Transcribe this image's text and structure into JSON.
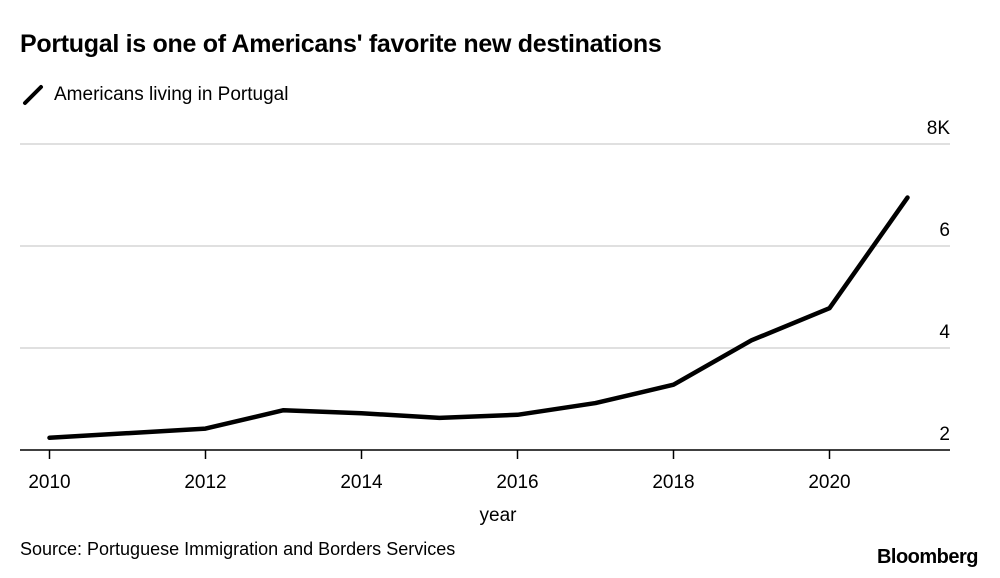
{
  "chart_data": {
    "type": "line",
    "title": "Portugal is one of Americans' favorite new destinations",
    "xlabel": "year",
    "ylabel": "",
    "x": [
      2010,
      2012,
      2013,
      2014,
      2015,
      2016,
      2017,
      2018,
      2019,
      2020,
      2021
    ],
    "series": [
      {
        "name": "Americans living in Portugal",
        "color": "#000000",
        "values": [
          2.24,
          2.42,
          2.78,
          2.72,
          2.63,
          2.69,
          2.92,
          3.28,
          4.15,
          4.78,
          6.95
        ]
      }
    ],
    "xticks": [
      "2010",
      "2012",
      "2014",
      "2016",
      "2018",
      "2020"
    ],
    "yticks": [
      "2",
      "4",
      "6",
      "8K"
    ],
    "ylim": [
      2,
      8
    ],
    "xlim": [
      2010,
      2021.7
    ],
    "y_unit": "thousands",
    "grid": true,
    "y_axis_side": "right",
    "legend_placement": "top-left"
  },
  "source": "Source: Portuguese Immigration and Borders Services",
  "logo": "Bloomberg"
}
